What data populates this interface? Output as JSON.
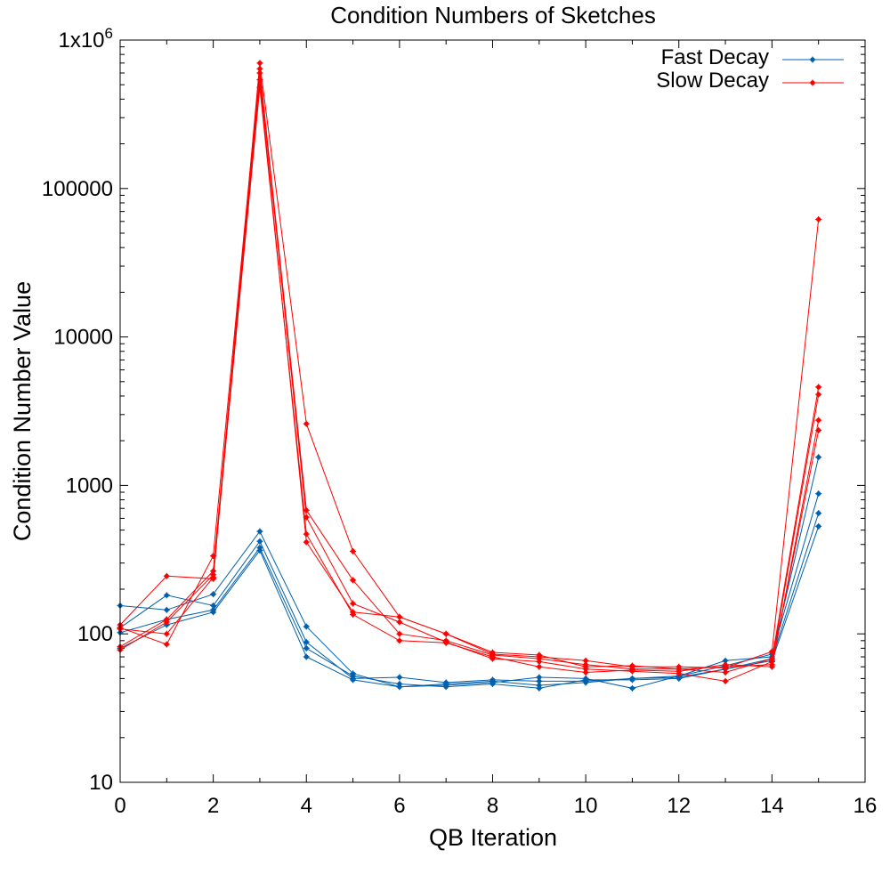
{
  "chart_data": {
    "type": "line",
    "title": "Condition Numbers of Sketches",
    "xlabel": "QB Iteration",
    "ylabel": "Condition Number Value",
    "xlim": [
      0,
      16
    ],
    "ylim": [
      10,
      1000000
    ],
    "yscale": "log",
    "x_ticks": [
      0,
      2,
      4,
      6,
      8,
      10,
      12,
      14,
      16
    ],
    "x_tick_labels": [
      "0",
      "2",
      "4",
      "6",
      "8",
      "10",
      "12",
      "14",
      "16"
    ],
    "y_ticks": [
      10,
      100,
      1000,
      10000,
      100000,
      1000000
    ],
    "y_tick_labels": [
      "10",
      "100",
      "1000",
      "10000",
      "100000",
      "1x10^6"
    ],
    "legend_position": "top-right",
    "grid": false,
    "legend": [
      {
        "label": "Fast Decay",
        "color": "#0060ad"
      },
      {
        "label": "Slow Decay",
        "color": "#ff0000"
      }
    ],
    "x": [
      0,
      1,
      2,
      3,
      4,
      5,
      6,
      7,
      8,
      9,
      10,
      11,
      12,
      13,
      14,
      15
    ],
    "series": [
      {
        "group": "Fast Decay",
        "color": "#0060ad",
        "values": [
          155,
          145,
          185,
          490,
          112,
          54,
          44,
          45,
          47,
          51,
          50,
          43,
          52,
          66,
          70,
          1550
        ]
      },
      {
        "group": "Fast Decay",
        "color": "#0060ad",
        "values": [
          110,
          182,
          155,
          420,
          88,
          50,
          51,
          47,
          49,
          48,
          48,
          50,
          52,
          61,
          73,
          880
        ]
      },
      {
        "group": "Fast Decay",
        "color": "#0060ad",
        "values": [
          102,
          125,
          145,
          380,
          80,
          52,
          46,
          44,
          46,
          43,
          49,
          49,
          50,
          58,
          68,
          650
        ]
      },
      {
        "group": "Fast Decay",
        "color": "#0060ad",
        "values": [
          80,
          115,
          140,
          365,
          70,
          49,
          44,
          46,
          48,
          45,
          47,
          50,
          51,
          58,
          66,
          530
        ]
      },
      {
        "group": "Slow Decay",
        "color": "#ff0000",
        "values": [
          115,
          245,
          235,
          700000,
          2600,
          360,
          130,
          100,
          73,
          70,
          66,
          60,
          60,
          59,
          76,
          62000
        ]
      },
      {
        "group": "Slow Decay",
        "color": "#ff0000",
        "values": [
          110,
          85,
          335,
          640000,
          680,
          230,
          100,
          90,
          72,
          68,
          62,
          58,
          58,
          55,
          68,
          4600
        ]
      },
      {
        "group": "Slow Decay",
        "color": "#ff0000",
        "values": [
          82,
          125,
          265,
          600000,
          610,
          160,
          120,
          88,
          68,
          65,
          58,
          56,
          54,
          48,
          65,
          4100
        ]
      },
      {
        "group": "Slow Decay",
        "color": "#ff0000",
        "values": [
          78,
          120,
          250,
          480000,
          470,
          135,
          90,
          87,
          70,
          60,
          55,
          57,
          56,
          62,
          60,
          2750
        ]
      },
      {
        "group": "Slow Decay",
        "color": "#ff0000",
        "values": [
          108,
          100,
          240,
          540000,
          415,
          140,
          130,
          100,
          75,
          72,
          60,
          61,
          58,
          60,
          62,
          2350
        ]
      }
    ]
  }
}
